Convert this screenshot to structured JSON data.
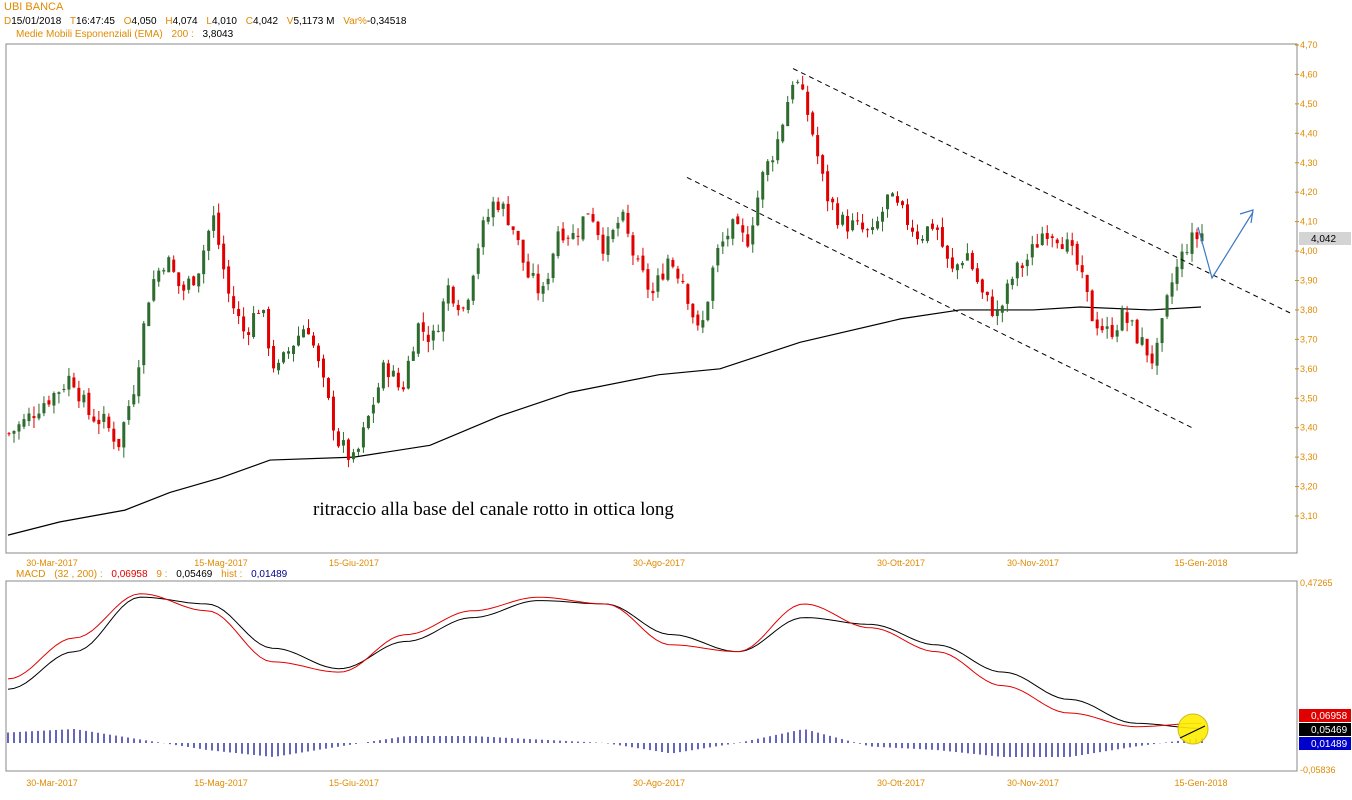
{
  "instrument": "UBI BANCA",
  "header": {
    "d_label": "D",
    "date": "15/01/2018",
    "t_label": "T",
    "time": "16:47:45",
    "o_label": "O",
    "open": "4,050",
    "h_label": "H",
    "high": "4,074",
    "l_label": "L",
    "low": "4,010",
    "c_label": "C",
    "close": "4,042",
    "v_label": "V",
    "volume": "5,1173 M",
    "var_label": "Var%",
    "var": "-0,34518"
  },
  "ema": {
    "label": "Medie Mobili Esponenziali (EMA)",
    "period": "200 :",
    "value": "3,8043"
  },
  "macd_header": {
    "label": "MACD",
    "params": "(32 , 200) :",
    "macd": "0,06958",
    "signal_label": "9 :",
    "signal": "0,05469",
    "hist_label": "hist :",
    "hist": "0,01489"
  },
  "annotation": "ritraccio alla base del canale rotto in ottica long",
  "last_price_tag": "4,042",
  "macd_tags": [
    "0,06958",
    "0,05469",
    "0,01489"
  ],
  "colors": {
    "up": "#2e6b2e",
    "down": "#e00000",
    "ema": "#000000",
    "macd": "#e00000",
    "signal": "#000000",
    "hist": "#00008b",
    "axis": "#e08a00",
    "circle": "#ffee00",
    "arrow": "#3a78c8"
  },
  "chart_data": [
    {
      "type": "candlestick",
      "title": "UBI BANCA",
      "ylim": [
        3.0,
        4.7
      ],
      "y_ticks": [
        "4,70",
        "4,60",
        "4,50",
        "4,40",
        "4,30",
        "4,20",
        "4,10",
        "4,00",
        "3,90",
        "3,80",
        "3,70",
        "3,60",
        "3,50",
        "3,40",
        "3,30",
        "3,20",
        "3,10"
      ],
      "x_ticks": [
        "30-Mar-2017",
        "15-Mag-2017",
        "15-Giu-2017",
        "30-Ago-2017",
        "30-Ott-2017",
        "30-Nov-2017",
        "15-Gen-2018"
      ],
      "close_path": [
        3.38,
        3.42,
        3.48,
        3.52,
        3.58,
        3.45,
        3.42,
        3.35,
        3.55,
        3.88,
        3.98,
        3.86,
        3.93,
        4.12,
        3.85,
        3.72,
        3.82,
        3.58,
        3.68,
        3.76,
        3.55,
        3.35,
        3.28,
        3.45,
        3.62,
        3.52,
        3.75,
        3.7,
        3.88,
        3.8,
        4.05,
        4.18,
        4.1,
        3.92,
        3.85,
        4.08,
        4.05,
        4.15,
        4.0,
        4.12,
        3.95,
        3.85,
        3.98,
        3.9,
        3.7,
        3.98,
        4.08,
        4.03,
        4.25,
        4.38,
        4.6,
        4.45,
        4.2,
        4.1,
        4.08,
        4.05,
        4.18,
        4.12,
        4.05,
        4.1,
        3.92,
        4.0,
        3.85,
        3.78,
        3.92,
        3.98,
        4.08,
        4.05,
        3.96,
        3.78,
        3.72,
        3.78,
        3.7,
        3.62,
        3.88,
        4.02,
        4.06
      ],
      "series": [
        {
          "name": "EMA 200",
          "x": [
            "30-Mar-2017",
            "15-Mag-2017",
            "15-Giu-2017",
            "30-Ago-2017",
            "30-Ott-2017",
            "30-Nov-2017",
            "15-Gen-2018"
          ],
          "values": [
            3.12,
            3.23,
            3.3,
            3.59,
            3.76,
            3.8,
            3.8
          ]
        }
      ],
      "last": 4.042,
      "channel_upper": [
        [
          4.62,
          4.62
        ],
        [
          3.78,
          3.78
        ]
      ],
      "channel_lower": [
        [
          4.25
        ],
        [
          3.4
        ]
      ]
    },
    {
      "type": "line",
      "title": "MACD",
      "ylim": [
        -0.05836,
        0.47265
      ],
      "y_ticks": [
        "0,47265",
        "-0,05836"
      ],
      "x_ticks": [
        "30-Mar-2017",
        "15-Mag-2017",
        "15-Giu-2017",
        "30-Ago-2017",
        "30-Ott-2017",
        "30-Nov-2017",
        "15-Gen-2018"
      ],
      "series": [
        {
          "name": "MACD",
          "values": [
            0.2,
            0.32,
            0.45,
            0.4,
            0.25,
            0.22,
            0.33,
            0.4,
            0.44,
            0.42,
            0.3,
            0.28,
            0.42,
            0.35,
            0.28,
            0.18,
            0.1,
            0.06,
            0.07
          ]
        },
        {
          "name": "Signal",
          "values": [
            0.17,
            0.28,
            0.44,
            0.42,
            0.29,
            0.23,
            0.31,
            0.38,
            0.43,
            0.42,
            0.33,
            0.28,
            0.38,
            0.36,
            0.3,
            0.22,
            0.14,
            0.07,
            0.055
          ]
        },
        {
          "name": "Hist",
          "values": [
            0.03,
            0.04,
            0.01,
            -0.02,
            -0.04,
            -0.01,
            0.02,
            0.02,
            0.01,
            0.0,
            -0.03,
            0.0,
            0.04,
            -0.01,
            -0.02,
            -0.04,
            -0.04,
            -0.01,
            0.015
          ]
        }
      ]
    }
  ]
}
